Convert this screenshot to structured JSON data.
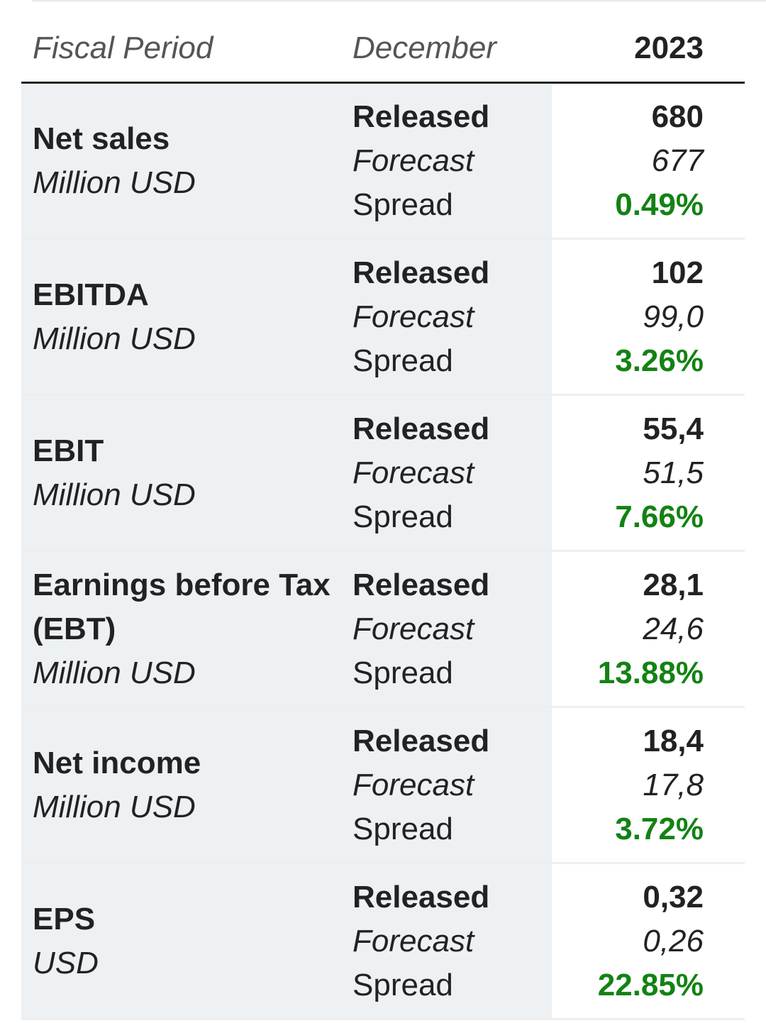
{
  "header": {
    "col1": "Fiscal Period",
    "col2": "December",
    "col3": "2023"
  },
  "labels": {
    "released": "Released",
    "forecast": "Forecast",
    "spread": "Spread"
  },
  "colors": {
    "positive": "#138213",
    "row_bg": "#edf1f4"
  },
  "rows": [
    {
      "metric": "Net sales",
      "unit": "Million USD",
      "released": "680",
      "forecast": "677",
      "spread": "0.49%"
    },
    {
      "metric": "EBITDA",
      "unit": "Million USD",
      "released": "102",
      "forecast": "99,0",
      "spread": "3.26%"
    },
    {
      "metric": "EBIT",
      "unit": "Million USD",
      "released": "55,4",
      "forecast": "51,5",
      "spread": "7.66%"
    },
    {
      "metric": "Earnings before Tax (EBT)",
      "unit": "Million USD",
      "released": "28,1",
      "forecast": "24,6",
      "spread": "13.88%"
    },
    {
      "metric": "Net income",
      "unit": "Million USD",
      "released": "18,4",
      "forecast": "17,8",
      "spread": "3.72%"
    },
    {
      "metric": "EPS",
      "unit": "USD",
      "released": "0,32",
      "forecast": "0,26",
      "spread": "22.85%"
    }
  ]
}
